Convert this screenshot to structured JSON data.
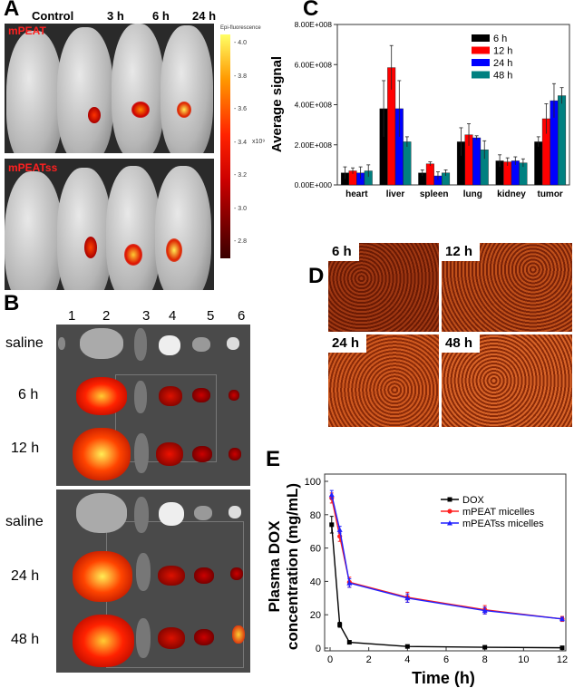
{
  "panel_labels": {
    "a": "A",
    "b": "B",
    "c": "C",
    "d": "D",
    "e": "E"
  },
  "panel_a": {
    "columns": [
      "Control",
      "3 h",
      "6 h",
      "24 h"
    ],
    "top_label": "mPEAT",
    "bottom_label": "mPEATss",
    "colorbar": {
      "title": "Epi-fluorescence",
      "ticks": [
        "4.0",
        "3.8",
        "3.6",
        "3.4",
        "3.2",
        "3.0",
        "2.8"
      ],
      "unit": "x10⁹",
      "colors": [
        "#ffff66",
        "#ff9900",
        "#ff2200",
        "#cc0000",
        "#3a0000"
      ]
    }
  },
  "panel_b": {
    "columns": [
      "1",
      "2",
      "3",
      "4",
      "5",
      "6"
    ],
    "top_rows": [
      "saline",
      "6 h",
      "12 h"
    ],
    "bottom_rows": [
      "saline",
      "24 h",
      "48 h"
    ]
  },
  "panel_d": {
    "tiles": [
      "6 h",
      "12 h",
      "24 h",
      "48 h"
    ]
  },
  "chart_data": [
    {
      "type": "bar",
      "ylabel": "Average signal",
      "xlabel": "",
      "categories": [
        "heart",
        "liver",
        "spleen",
        "lung",
        "kidney",
        "tumor"
      ],
      "ylim": [
        0,
        800000000
      ],
      "yticks": [
        "0.00E+000",
        "2.00E+008",
        "4.00E+008",
        "6.00E+008",
        "8.00E+008"
      ],
      "legend_position": "top-right",
      "series": [
        {
          "name": "6 h",
          "color": "#000000",
          "values": [
            60000000,
            380000000,
            60000000,
            215000000,
            120000000,
            215000000
          ],
          "errors": [
            30000000,
            140000000,
            15000000,
            70000000,
            30000000,
            25000000
          ]
        },
        {
          "name": "12 h",
          "color": "#ff0000",
          "values": [
            70000000,
            585000000,
            105000000,
            250000000,
            115000000,
            330000000
          ],
          "errors": [
            15000000,
            110000000,
            10000000,
            55000000,
            20000000,
            75000000
          ]
        },
        {
          "name": "24 h",
          "color": "#0000ff",
          "values": [
            60000000,
            380000000,
            45000000,
            235000000,
            120000000,
            420000000
          ],
          "errors": [
            30000000,
            140000000,
            20000000,
            10000000,
            20000000,
            85000000
          ]
        },
        {
          "name": "48 h",
          "color": "#008080",
          "values": [
            70000000,
            215000000,
            60000000,
            175000000,
            110000000,
            445000000
          ],
          "errors": [
            30000000,
            25000000,
            15000000,
            45000000,
            20000000,
            40000000
          ]
        }
      ]
    },
    {
      "type": "line",
      "xlabel": "Time (h)",
      "ylabel": "Plasma DOX concentration (mg/mL)",
      "xlim": [
        0,
        12
      ],
      "ylim": [
        0,
        100
      ],
      "xticks": [
        "0",
        "2",
        "4",
        "6",
        "8",
        "10",
        "12"
      ],
      "yticks": [
        "0",
        "20",
        "40",
        "60",
        "80",
        "100"
      ],
      "legend_position": "top-right",
      "x": [
        0.083,
        0.5,
        1,
        4,
        8,
        12
      ],
      "series": [
        {
          "name": "DOX",
          "color": "#000000",
          "marker": "square",
          "values": [
            74,
            14,
            3.5,
            1,
            0.5,
            0.2
          ],
          "errors": [
            5,
            1.5,
            0.5,
            0.3,
            0.2,
            0.1
          ]
        },
        {
          "name": "mPEAT micelles",
          "color": "#ff2020",
          "marker": "circle",
          "values": [
            90,
            67,
            39.5,
            30.5,
            23,
            17.5
          ],
          "errors": [
            3,
            3,
            3,
            3,
            2.5,
            1.5
          ]
        },
        {
          "name": "mPEATss micelles",
          "color": "#2020ff",
          "marker": "triangle",
          "values": [
            92,
            71,
            39,
            30,
            22.5,
            17.5
          ],
          "errors": [
            2.5,
            2,
            2.5,
            2.5,
            2,
            1
          ]
        }
      ]
    }
  ]
}
